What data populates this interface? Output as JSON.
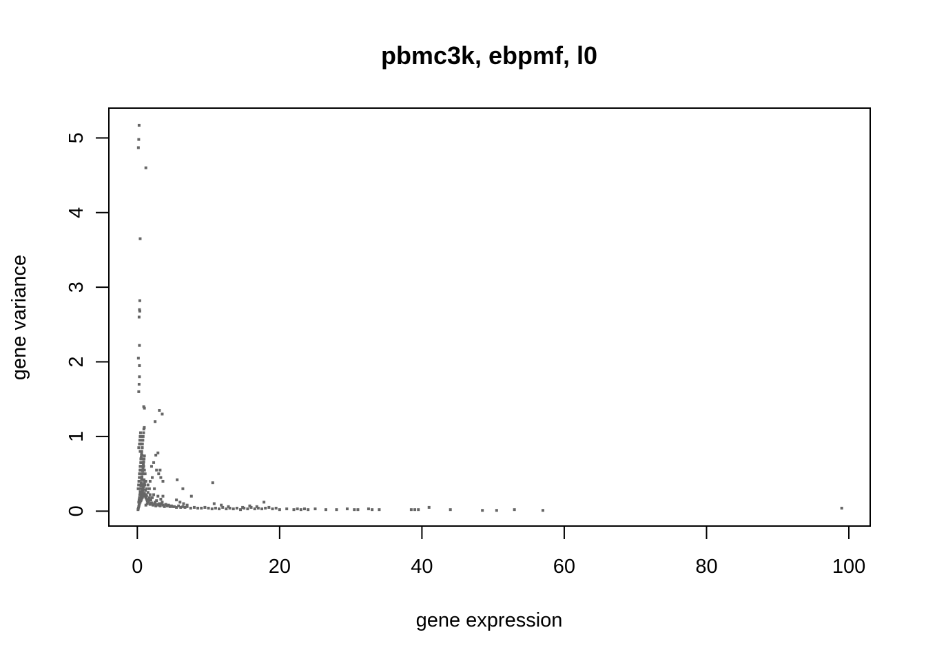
{
  "chart_data": {
    "type": "scatter",
    "title": "pbmc3k, ebpmf, l0",
    "xlabel": "gene expression",
    "ylabel": "gene variance",
    "xlim": [
      -4,
      103
    ],
    "ylim": [
      -0.2,
      5.4
    ],
    "xticks": [
      0,
      20,
      40,
      60,
      80,
      100
    ],
    "yticks": [
      0,
      1,
      2,
      3,
      4,
      5
    ],
    "grid": false,
    "legend": "none",
    "point_color": "#666666",
    "series": [
      {
        "x": [
          0.1,
          0.15,
          0.2,
          0.25,
          0.3,
          0.35,
          0.4,
          0.45,
          0.5,
          0.55,
          0.6,
          0.65,
          0.7,
          0.75,
          0.8,
          0.85,
          0.9,
          0.95,
          1.0,
          1.05,
          0.12,
          0.18,
          0.22,
          0.28,
          0.32,
          0.38,
          0.42,
          0.48,
          0.52,
          0.58,
          0.62,
          0.68,
          0.72,
          0.78,
          0.82,
          0.88,
          0.92,
          0.98,
          0.2,
          0.25,
          0.3,
          0.35,
          0.4,
          0.45,
          0.5,
          0.55,
          0.6,
          0.65,
          0.7,
          0.75,
          0.8,
          0.85,
          0.9,
          0.95,
          1.0,
          1.1,
          1.2,
          1.3,
          0.3,
          0.4,
          0.5,
          0.6,
          0.7,
          0.8,
          0.9,
          1.0,
          1.1,
          1.2,
          1.3,
          1.4,
          1.5,
          1.6,
          1.7,
          1.8,
          0.35,
          0.45,
          0.55,
          0.65,
          0.75,
          0.85,
          0.95,
          1.05,
          1.15,
          1.25,
          0.4,
          0.5,
          0.6,
          0.7,
          0.8,
          0.9,
          1.0,
          0.45,
          0.55,
          0.65,
          0.75,
          0.85,
          0.5,
          0.6,
          0.7,
          0.8,
          0.9,
          1.0,
          0.3,
          0.4,
          0.5,
          0.6,
          0.7,
          1.2,
          1.4,
          1.6,
          1.8,
          2.0,
          2.2,
          2.4,
          2.6,
          2.8,
          3.0,
          3.2,
          3.4,
          3.6,
          3.8,
          4.0,
          4.2,
          4.4,
          4.6,
          4.8,
          5.0,
          1.3,
          1.5,
          1.7,
          1.9,
          2.1,
          2.3,
          2.5,
          2.7,
          2.9,
          3.1,
          3.3,
          3.5,
          1.5,
          1.8,
          2.1,
          2.4,
          2.7,
          3.0,
          3.3,
          3.6,
          2.0,
          2.3,
          2.6,
          2.9,
          3.2,
          5.2,
          5.5,
          5.8,
          6.1,
          6.4,
          6.7,
          7.0,
          7.5,
          8.0,
          8.5,
          9.0,
          9.5,
          5.5,
          6.0,
          6.5,
          7.0,
          10.0,
          10.5,
          11.0,
          11.5,
          12.0,
          12.5,
          13.0,
          13.5,
          14.0,
          14.5,
          15.0,
          15.5,
          16.0,
          16.5,
          17.0,
          17.5,
          18.0,
          18.5,
          19.0,
          19.5,
          10.8,
          11.8,
          12.8,
          14.8,
          15.8,
          16.8,
          17.8,
          20.0,
          21.0,
          22.0,
          22.5,
          23.0,
          23.5,
          24.0,
          25.0,
          26.5,
          28.0,
          29.5,
          30.5,
          31.0,
          32.5,
          33.0,
          34.0,
          38.5,
          39.0,
          39.5,
          41.0,
          44.0,
          48.5,
          50.5,
          53.0,
          57.0,
          99.0,
          0.15,
          0.2,
          0.25,
          0.2,
          0.25,
          0.3,
          0.3,
          0.15,
          0.3,
          0.25,
          0.35,
          0.3,
          0.35,
          0.4,
          0.9,
          1.0,
          1.2,
          2.5,
          3.1,
          3.5,
          3.6,
          5.6,
          6.4,
          7.6,
          10.6,
          0.2,
          0.3,
          0.35,
          0.4,
          0.45,
          0.5,
          0.55,
          0.6,
          0.65,
          0.7
        ],
        "y": [
          0.02,
          0.04,
          0.06,
          0.08,
          0.1,
          0.12,
          0.14,
          0.16,
          0.18,
          0.2,
          0.22,
          0.24,
          0.26,
          0.28,
          0.3,
          0.32,
          0.34,
          0.36,
          0.38,
          0.4,
          0.3,
          0.35,
          0.4,
          0.45,
          0.5,
          0.55,
          0.6,
          0.65,
          0.7,
          0.75,
          0.8,
          0.85,
          0.9,
          0.95,
          1.0,
          1.05,
          1.1,
          1.12,
          0.12,
          0.15,
          0.18,
          0.22,
          0.26,
          0.3,
          0.34,
          0.38,
          0.42,
          0.46,
          0.5,
          0.54,
          0.58,
          0.62,
          0.66,
          0.7,
          0.74,
          0.5,
          0.4,
          0.3,
          0.1,
          0.12,
          0.14,
          0.16,
          0.18,
          0.2,
          0.22,
          0.24,
          0.2,
          0.18,
          0.16,
          0.14,
          0.12,
          0.15,
          0.18,
          0.22,
          0.45,
          0.55,
          0.65,
          0.75,
          0.6,
          0.5,
          0.42,
          0.35,
          0.28,
          0.22,
          0.8,
          0.9,
          1.0,
          0.85,
          0.7,
          0.6,
          0.55,
          0.25,
          0.35,
          0.45,
          0.55,
          0.65,
          0.15,
          0.2,
          0.25,
          0.3,
          0.35,
          0.4,
          0.5,
          0.6,
          0.7,
          0.8,
          0.95,
          0.08,
          0.1,
          0.12,
          0.09,
          0.11,
          0.08,
          0.1,
          0.07,
          0.09,
          0.08,
          0.07,
          0.1,
          0.08,
          0.06,
          0.09,
          0.07,
          0.08,
          0.06,
          0.07,
          0.06,
          0.2,
          0.25,
          0.3,
          0.15,
          0.18,
          0.22,
          0.12,
          0.14,
          0.2,
          0.1,
          0.16,
          0.12,
          0.35,
          0.4,
          0.45,
          0.3,
          0.55,
          0.5,
          0.45,
          0.4,
          0.6,
          0.65,
          0.75,
          0.78,
          0.55,
          0.06,
          0.05,
          0.07,
          0.05,
          0.06,
          0.05,
          0.06,
          0.04,
          0.05,
          0.04,
          0.04,
          0.05,
          0.15,
          0.12,
          0.1,
          0.08,
          0.04,
          0.03,
          0.04,
          0.03,
          0.05,
          0.03,
          0.04,
          0.03,
          0.04,
          0.02,
          0.04,
          0.03,
          0.05,
          0.03,
          0.04,
          0.03,
          0.04,
          0.05,
          0.03,
          0.04,
          0.1,
          0.08,
          0.06,
          0.05,
          0.07,
          0.06,
          0.12,
          0.02,
          0.03,
          0.02,
          0.03,
          0.02,
          0.03,
          0.02,
          0.03,
          0.02,
          0.02,
          0.03,
          0.02,
          0.02,
          0.03,
          0.02,
          0.02,
          0.02,
          0.02,
          0.02,
          0.05,
          0.02,
          0.01,
          0.01,
          0.02,
          0.01,
          0.04,
          4.87,
          4.98,
          5.17,
          1.6,
          1.7,
          1.8,
          1.95,
          2.05,
          2.22,
          2.6,
          2.68,
          2.7,
          2.82,
          3.65,
          1.4,
          1.38,
          4.6,
          1.2,
          1.35,
          1.3,
          0.2,
          0.42,
          0.3,
          0.2,
          0.38,
          0.85,
          0.9,
          0.95,
          1.0,
          1.05,
          0.7,
          0.72,
          0.78,
          0.6,
          0.65
        ]
      }
    ]
  }
}
